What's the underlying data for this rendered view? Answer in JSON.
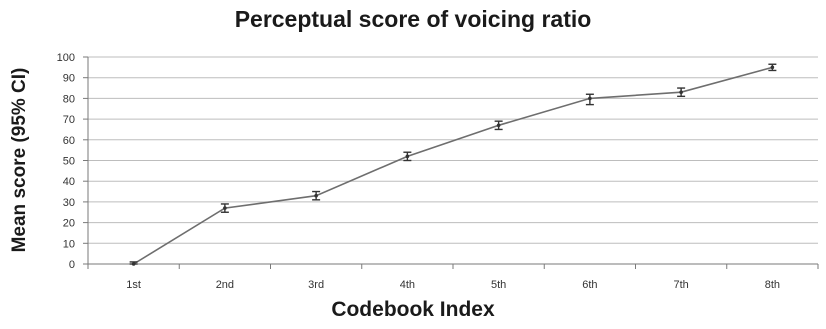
{
  "chart_data": {
    "type": "line",
    "title": "Perceptual score of voicing ratio",
    "xlabel": "Codebook Index",
    "ylabel": "Mean score (95% CI)",
    "categories": [
      "1st",
      "2nd",
      "3rd",
      "4th",
      "5th",
      "6th",
      "7th",
      "8th"
    ],
    "series": [
      {
        "values": [
          0,
          27,
          33,
          52,
          67,
          80,
          83,
          95
        ],
        "ci_low": [
          0,
          25,
          31,
          50,
          65,
          77,
          81,
          93.5
        ],
        "ci_high": [
          1,
          29,
          35,
          54,
          69,
          82,
          85,
          96.5
        ]
      }
    ],
    "ylim": [
      0,
      100
    ],
    "yticks": [
      0,
      10,
      20,
      30,
      40,
      50,
      60,
      70,
      80,
      90,
      100
    ],
    "grid": true,
    "legend": "none",
    "colors": {
      "line": "#6e6e6e",
      "grid": "#bdbdbd",
      "axis": "#7a7a7a",
      "errorbar": "#333333"
    }
  }
}
